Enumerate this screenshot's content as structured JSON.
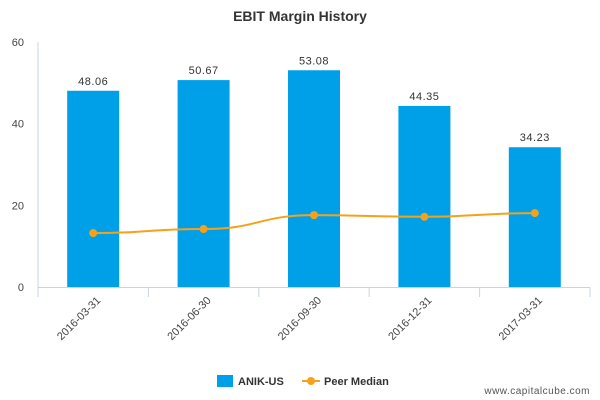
{
  "chart_data": {
    "type": "bar",
    "title": "EBIT Margin History",
    "categories": [
      "2016-03-31",
      "2016-06-30",
      "2016-09-30",
      "2016-12-31",
      "2017-03-31"
    ],
    "series": [
      {
        "name": "ANIK-US",
        "type": "bar",
        "color": "#00a0e9",
        "values": [
          48.06,
          50.67,
          53.08,
          44.35,
          34.23
        ],
        "value_labels": [
          "48.06",
          "50.67",
          "53.08",
          "44.35",
          "34.23"
        ]
      },
      {
        "name": "Peer Median",
        "type": "line",
        "color": "#f7a11a",
        "values": [
          13.2,
          14.2,
          17.6,
          17.2,
          18.1
        ]
      }
    ],
    "ylim": [
      0,
      60
    ],
    "yticks": [
      0,
      20,
      40,
      60
    ],
    "ytick_labels": [
      "0",
      "20",
      "40",
      "60"
    ],
    "xlabel": "",
    "ylabel": "",
    "grid": false,
    "legend_position": "bottom-center"
  },
  "watermark": "www.capitalcube.com"
}
